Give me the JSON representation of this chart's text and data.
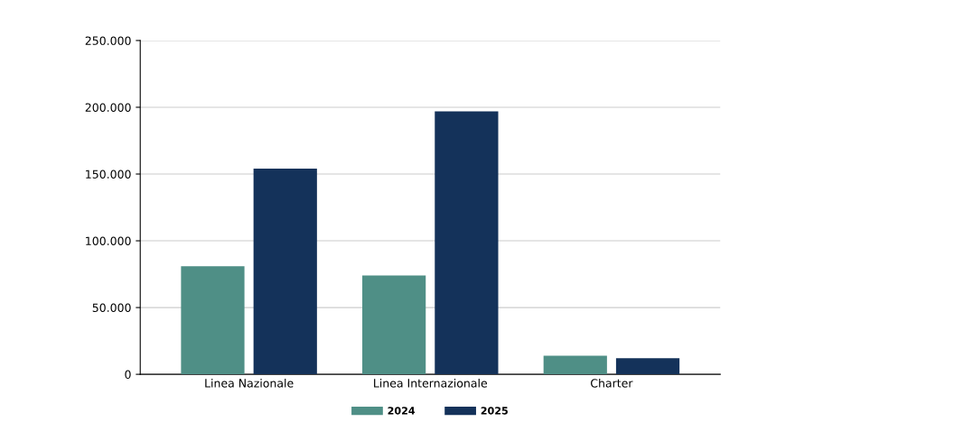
{
  "chart_data": {
    "type": "bar",
    "categories": [
      "Linea Nazionale",
      "Linea Internazionale",
      "Charter"
    ],
    "series": [
      {
        "name": "2024",
        "color": "#4f8f86",
        "values": [
          81000,
          74000,
          14000
        ]
      },
      {
        "name": "2025",
        "color": "#14325a",
        "values": [
          154000,
          197000,
          12000
        ]
      }
    ],
    "ylim": [
      0,
      250000
    ],
    "yticks": [
      0,
      {
        "value": 50000,
        "label": "50.000"
      },
      {
        "value": 100000,
        "label": "100.000"
      },
      {
        "value": 150000,
        "label": "150.000"
      },
      {
        "value": 200000,
        "label": "200.000"
      },
      {
        "value": 250000,
        "label": "250.000"
      }
    ],
    "grid": "y",
    "legend": "bottom"
  }
}
